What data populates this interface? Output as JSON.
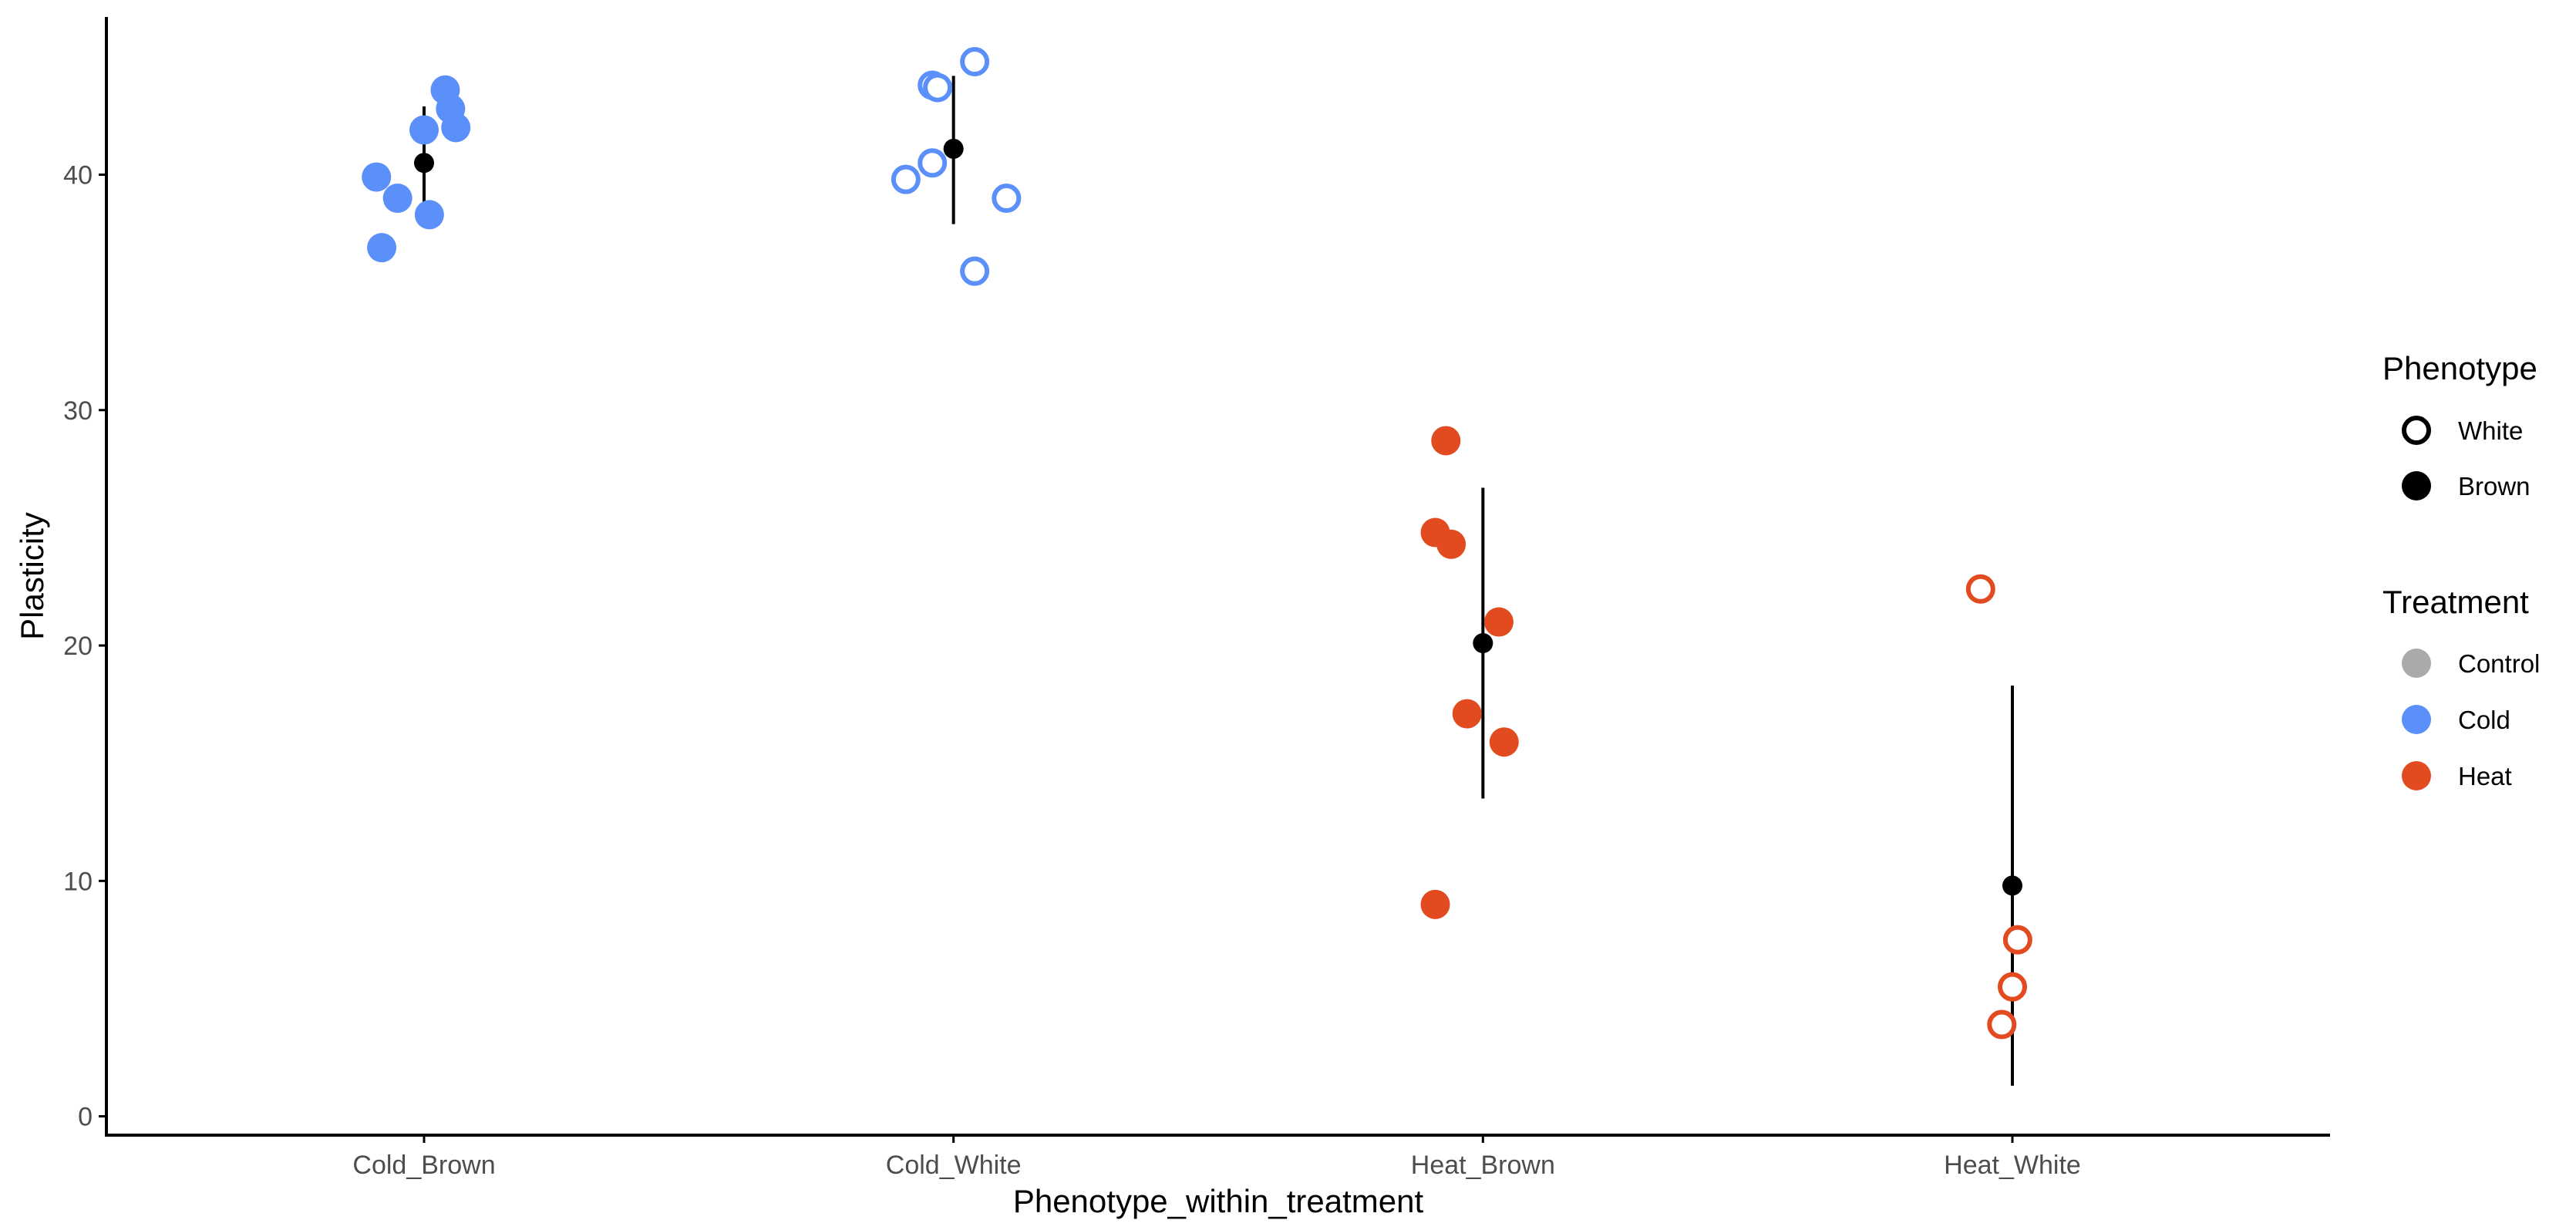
{
  "chart_data": {
    "type": "scatter",
    "title": "",
    "xlabel": "Phenotype_within_treatment",
    "ylabel": "Plasticity",
    "categories": [
      "Cold_Brown",
      "Cold_White",
      "Heat_Brown",
      "Heat_White"
    ],
    "yticks": [
      0,
      10,
      20,
      30,
      40
    ],
    "ylim": [
      -0.8,
      46.7
    ],
    "grid": false,
    "legend_position": "right",
    "groups": [
      {
        "category": "Cold_Brown",
        "treatment": "Cold",
        "phenotype": "Brown",
        "points": [
          {
            "dx": -0.09,
            "y": 39.9
          },
          {
            "dx": -0.05,
            "y": 39.0
          },
          {
            "dx": -0.08,
            "y": 36.9
          },
          {
            "dx": 0.01,
            "y": 38.3
          },
          {
            "dx": 0.04,
            "y": 43.6
          },
          {
            "dx": 0.05,
            "y": 42.8
          },
          {
            "dx": 0.06,
            "y": 42.0
          },
          {
            "dx": 0.0,
            "y": 41.9
          }
        ],
        "mean": 40.5,
        "interval": [
          38.1,
          42.9
        ]
      },
      {
        "category": "Cold_White",
        "treatment": "Cold",
        "phenotype": "White",
        "points": [
          {
            "dx": 0.04,
            "y": 44.8
          },
          {
            "dx": -0.04,
            "y": 43.8
          },
          {
            "dx": -0.03,
            "y": 43.7
          },
          {
            "dx": -0.04,
            "y": 40.5
          },
          {
            "dx": -0.09,
            "y": 39.8
          },
          {
            "dx": 0.1,
            "y": 39.0
          },
          {
            "dx": 0.04,
            "y": 35.9
          }
        ],
        "mean": 41.1,
        "interval": [
          37.9,
          44.2
        ]
      },
      {
        "category": "Heat_Brown",
        "treatment": "Heat",
        "phenotype": "Brown",
        "points": [
          {
            "dx": -0.07,
            "y": 28.7
          },
          {
            "dx": -0.09,
            "y": 24.8
          },
          {
            "dx": -0.06,
            "y": 24.3
          },
          {
            "dx": 0.03,
            "y": 21.0
          },
          {
            "dx": -0.03,
            "y": 17.1
          },
          {
            "dx": 0.04,
            "y": 15.9
          },
          {
            "dx": -0.09,
            "y": 9.0
          }
        ],
        "mean": 20.1,
        "interval": [
          13.5,
          26.7
        ]
      },
      {
        "category": "Heat_White",
        "treatment": "Heat",
        "phenotype": "White",
        "points": [
          {
            "dx": -0.06,
            "y": 22.4
          },
          {
            "dx": 0.01,
            "y": 7.5
          },
          {
            "dx": 0.0,
            "y": 5.5
          },
          {
            "dx": -0.02,
            "y": 3.9
          }
        ],
        "mean": 9.8,
        "interval": [
          1.3,
          18.3
        ]
      }
    ],
    "legend": {
      "phenotype": {
        "title": "Phenotype",
        "items": [
          "White",
          "Brown"
        ]
      },
      "treatment": {
        "title": "Treatment",
        "items": [
          "Control",
          "Cold",
          "Heat"
        ]
      }
    },
    "colors": {
      "Control": "#aaaaaa",
      "Cold": "#5b8ff9",
      "Heat": "#e24a1f",
      "summary": "#000000",
      "axis": "#000000",
      "tick_text": "#4d4d4d"
    }
  }
}
